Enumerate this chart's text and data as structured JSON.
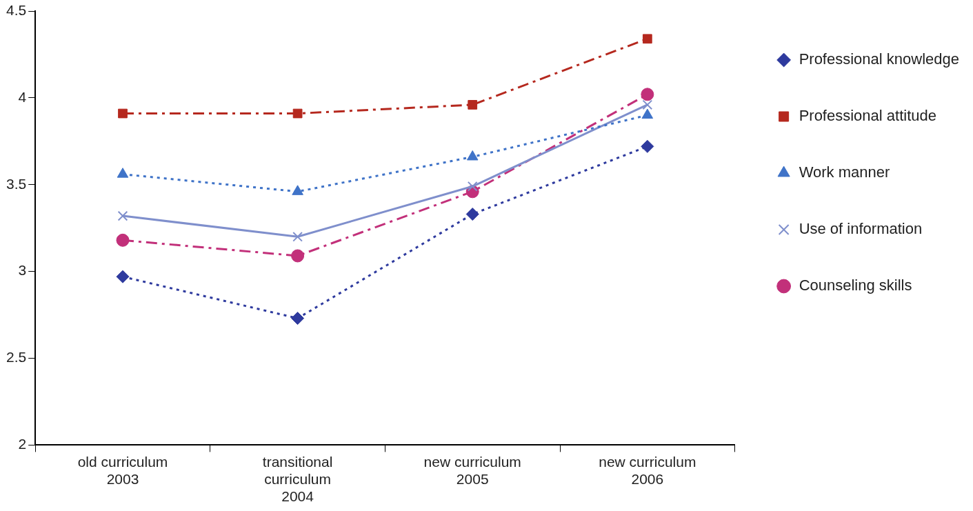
{
  "chart_data": {
    "type": "line",
    "categories": [
      "old curriculum\n2003",
      "transitional\ncurriculum\n2004",
      "new curriculum\n2005",
      "new curriculum\n2006"
    ],
    "series": [
      {
        "name": "Professional knowledge",
        "color": "#2e3a9e",
        "values": [
          2.97,
          2.73,
          3.33,
          3.72
        ],
        "marker": "diamond",
        "line_style": "dotted"
      },
      {
        "name": "Professional attitude",
        "color": "#b5281e",
        "values": [
          3.91,
          3.91,
          3.96,
          4.34
        ],
        "marker": "square",
        "line_style": "dashed"
      },
      {
        "name": "Work manner",
        "color": "#3f73c8",
        "values": [
          3.56,
          3.46,
          3.66,
          3.9
        ],
        "marker": "triangle",
        "line_style": "dotted"
      },
      {
        "name": "Use of information",
        "color": "#7f8fcc",
        "values": [
          3.32,
          3.2,
          3.49,
          3.96
        ],
        "marker": "cross",
        "line_style": "solid"
      },
      {
        "name": "Counseling skills",
        "color": "#c2307a",
        "values": [
          3.18,
          3.09,
          3.46,
          4.02
        ],
        "marker": "circle",
        "line_style": "dashed"
      }
    ],
    "ylim": [
      2,
      4.5
    ],
    "yticks": [
      2,
      2.5,
      3,
      3.5,
      4,
      4.5
    ],
    "grid": false,
    "legend": "right"
  }
}
